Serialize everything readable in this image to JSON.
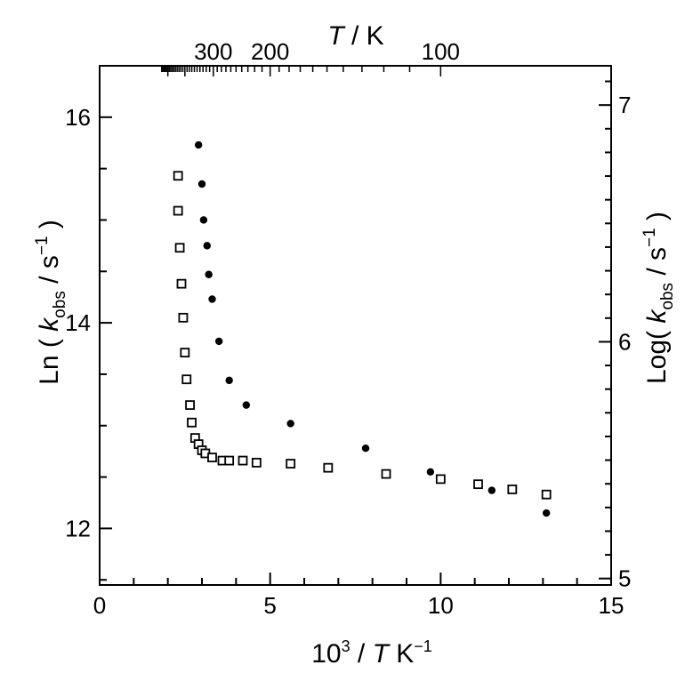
{
  "chart_data": {
    "type": "scatter",
    "x_axis": {
      "label_parts": [
        "10",
        "3",
        " / ",
        "T",
        " K",
        "−1"
      ],
      "range": [
        0,
        15
      ],
      "major_ticks": [
        0,
        5,
        10,
        15
      ],
      "minor_step": 1
    },
    "y_left_axis": {
      "label_parts": [
        "Ln ( ",
        "k",
        "obs",
        " / s",
        "−1",
        " )"
      ],
      "range": [
        11.45,
        16.5
      ],
      "major_ticks": [
        12,
        14,
        16
      ],
      "minor_step": 0.5
    },
    "y_right_axis": {
      "label_parts": [
        "Log( ",
        "k",
        "obs",
        " / s",
        "−1",
        " )"
      ],
      "ticks": [
        5,
        6,
        7
      ],
      "tick_labels": [
        "5",
        "6",
        "7"
      ]
    },
    "top_axis": {
      "title_parts": [
        "T",
        " / K"
      ],
      "labels": [
        {
          "text": "300",
          "T": 300
        },
        {
          "text": "200",
          "T": 200
        },
        {
          "text": "100",
          "T": 100
        }
      ]
    },
    "series": [
      {
        "marker": "open-square",
        "points": [
          [
            2.3,
            15.43
          ],
          [
            2.3,
            15.09
          ],
          [
            2.35,
            14.73
          ],
          [
            2.4,
            14.38
          ],
          [
            2.45,
            14.05
          ],
          [
            2.5,
            13.71
          ],
          [
            2.55,
            13.45
          ],
          [
            2.65,
            13.2
          ],
          [
            2.7,
            13.03
          ],
          [
            2.8,
            12.88
          ],
          [
            2.9,
            12.82
          ],
          [
            3.0,
            12.76
          ],
          [
            3.1,
            12.73
          ],
          [
            3.3,
            12.69
          ],
          [
            3.6,
            12.66
          ],
          [
            3.8,
            12.66
          ],
          [
            4.2,
            12.66
          ],
          [
            4.6,
            12.64
          ],
          [
            5.6,
            12.63
          ],
          [
            6.7,
            12.59
          ],
          [
            8.4,
            12.53
          ],
          [
            10.0,
            12.48
          ],
          [
            11.1,
            12.43
          ],
          [
            12.1,
            12.38
          ],
          [
            13.1,
            12.33
          ]
        ]
      },
      {
        "marker": "filled-circle",
        "points": [
          [
            2.9,
            15.73
          ],
          [
            3.0,
            15.35
          ],
          [
            3.05,
            15.0
          ],
          [
            3.15,
            14.75
          ],
          [
            3.2,
            14.47
          ],
          [
            3.3,
            14.23
          ],
          [
            3.5,
            13.82
          ],
          [
            3.8,
            13.44
          ],
          [
            4.3,
            13.2
          ],
          [
            5.6,
            13.02
          ],
          [
            7.8,
            12.78
          ],
          [
            9.7,
            12.55
          ],
          [
            11.5,
            12.37
          ],
          [
            13.1,
            12.15
          ]
        ]
      }
    ]
  }
}
